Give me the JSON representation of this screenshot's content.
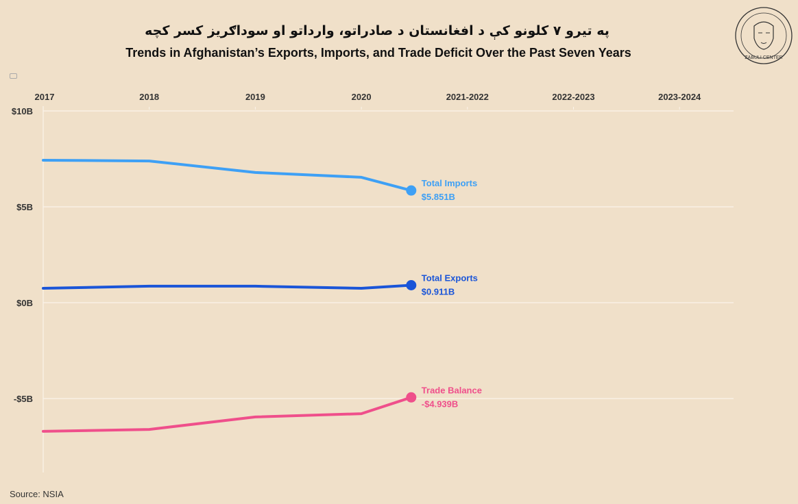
{
  "header": {
    "title_pashto": "په تیرو ۷ کلونو کې د افغانستان د صادراتو، وارداتو او سوداګریز کسر کچه",
    "title_english": "Trends in Afghanistan’s Exports, Imports, and Trade Deficit Over the Past Seven Years"
  },
  "logo": {
    "text": "ZABULI CENTER"
  },
  "source": "Source: NSIA",
  "chart_data": {
    "type": "line",
    "x_categories": [
      "2017",
      "2018",
      "2019",
      "2020",
      "2021-2022",
      "2022-2023",
      "2023-2024"
    ],
    "x_axis_position": "top",
    "y_ticks": [
      {
        "value": 10,
        "label": "$10B"
      },
      {
        "value": 5,
        "label": "$5B"
      },
      {
        "value": 0,
        "label": "$0B"
      },
      {
        "value": -5,
        "label": "-$5B"
      }
    ],
    "ylim": [
      -8.9,
      10
    ],
    "y_unit": "billion USD",
    "grid": true,
    "series": [
      {
        "name": "Total Imports",
        "end_label": "$5.851B",
        "color": "#3ea0f5",
        "x": [
          0,
          1,
          2,
          3,
          3.47
        ],
        "values": [
          7.43,
          7.39,
          6.79,
          6.54,
          5.851
        ]
      },
      {
        "name": "Total Exports",
        "end_label": "$0.911B",
        "color": "#1a55d8",
        "x": [
          0,
          1,
          2,
          3,
          3.47
        ],
        "values": [
          0.75,
          0.86,
          0.86,
          0.75,
          0.911
        ]
      },
      {
        "name": "Trade Balance",
        "end_label": "-$4.939B",
        "color": "#ef4f8b",
        "x": [
          0,
          1,
          2,
          3,
          3.47
        ],
        "values": [
          -6.71,
          -6.61,
          -5.96,
          -5.79,
          -4.939
        ]
      }
    ]
  }
}
